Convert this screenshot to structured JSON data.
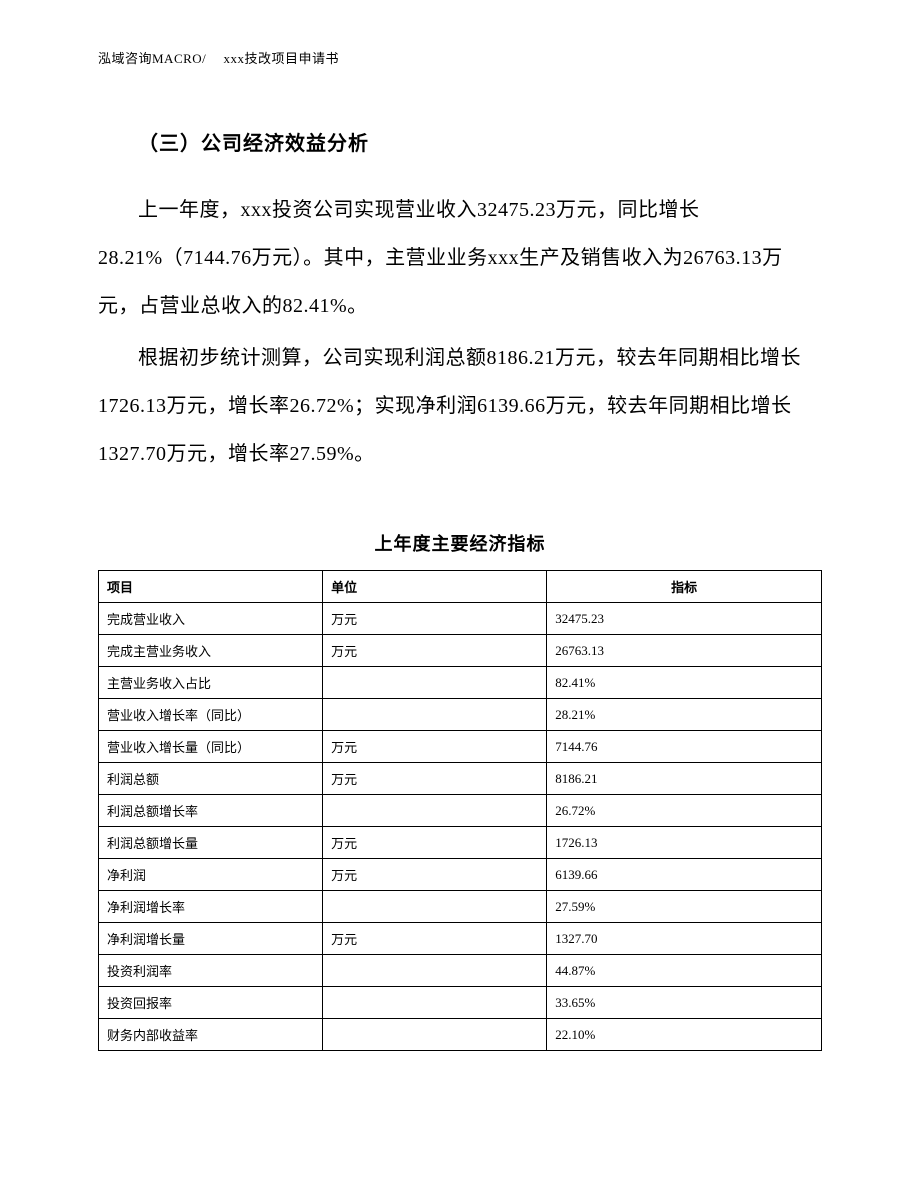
{
  "header_text": "泓域咨询MACRO/　 xxx技改项目申请书",
  "section_title": "（三）公司经济效益分析",
  "paragraph1": "上一年度，xxx投资公司实现营业收入32475.23万元，同比增长28.21%（7144.76万元）。其中，主营业业务xxx生产及销售收入为26763.13万元，占营业总收入的82.41%。",
  "paragraph2": "根据初步统计测算，公司实现利润总额8186.21万元，较去年同期相比增长1726.13万元，增长率26.72%；实现净利润6139.66万元，较去年同期相比增长1327.70万元，增长率27.59%。",
  "table_title": "上年度主要经济指标",
  "table": {
    "columns": [
      "项目",
      "单位",
      "指标"
    ],
    "col_widths": [
      "31%",
      "31%",
      "38%"
    ],
    "header_font_weight": "bold",
    "font_size": 13,
    "border_color": "#000000",
    "background_color": "#ffffff",
    "rows": [
      [
        "完成营业收入",
        "万元",
        "32475.23"
      ],
      [
        "完成主营业务收入",
        "万元",
        "26763.13"
      ],
      [
        "主营业务收入占比",
        "",
        "82.41%"
      ],
      [
        "营业收入增长率（同比）",
        "",
        "28.21%"
      ],
      [
        "营业收入增长量（同比）",
        "万元",
        "7144.76"
      ],
      [
        "利润总额",
        "万元",
        "8186.21"
      ],
      [
        "利润总额增长率",
        "",
        "26.72%"
      ],
      [
        "利润总额增长量",
        "万元",
        "1726.13"
      ],
      [
        "净利润",
        "万元",
        "6139.66"
      ],
      [
        "净利润增长率",
        "",
        "27.59%"
      ],
      [
        "净利润增长量",
        "万元",
        "1327.70"
      ],
      [
        "投资利润率",
        "",
        "44.87%"
      ],
      [
        "投资回报率",
        "",
        "33.65%"
      ],
      [
        "财务内部收益率",
        "",
        "22.10%"
      ]
    ]
  },
  "styling": {
    "page_bg": "#ffffff",
    "text_color": "#000000",
    "body_font_size": 20,
    "header_font_size": 13,
    "line_height": 2.4,
    "font_family": "SimSun"
  }
}
